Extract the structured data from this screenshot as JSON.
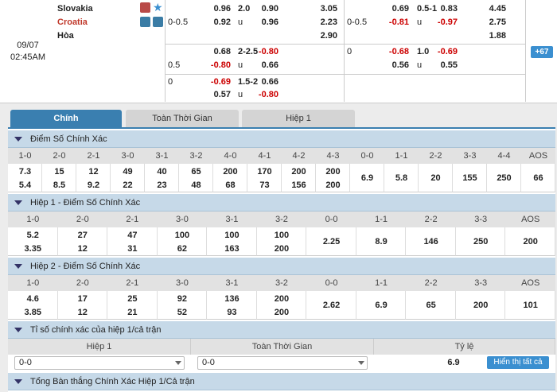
{
  "match": {
    "date": "09/07",
    "time": "02:45AM",
    "home": "Slovakia",
    "away": "Croatia",
    "draw": "Hòa",
    "more": "67",
    "lines": [
      {
        "ft_hdp": {
          "line": "0-0.5",
          "home": "0.96",
          "away": "0.92"
        },
        "ft_ou": {
          "line": "2.0",
          "over": "0.90",
          "under_label": "u",
          "under": "0.96"
        },
        "ft_1x2": {
          "home": "3.05",
          "away": "2.23",
          "draw": "2.90"
        },
        "h1_hdp": {
          "line": "0-0.5",
          "home": "0.69",
          "away": "-0.81"
        },
        "h1_ou": {
          "line": "0.5-1",
          "over": "0.83",
          "under_label": "u",
          "under": "-0.97"
        },
        "h1_1x2": {
          "home": "4.45",
          "away": "2.75",
          "draw": "1.88"
        }
      },
      {
        "ft_hdp": {
          "line": "0.5",
          "home": "0.68",
          "away": "-0.80"
        },
        "ft_ou": {
          "line": "2-2.5",
          "over": "-0.80",
          "under_label": "u",
          "under": "0.66"
        },
        "h1_hdp": {
          "line": "0",
          "home": "-0.68",
          "away": "0.56"
        },
        "h1_ou": {
          "line": "1.0",
          "over": "-0.69",
          "under_label": "u",
          "under": "0.55"
        }
      },
      {
        "ft_hdp": {
          "line": "0",
          "home": "-0.69",
          "away": "0.57"
        },
        "ft_ou": {
          "line": "1.5-2",
          "over": "0.66",
          "under_label": "u",
          "under": "-0.80"
        }
      }
    ]
  },
  "tabs": [
    "Chính",
    "Toàn Thời Gian",
    "Hiệp 1"
  ],
  "sections": [
    {
      "title": "Điểm Số Chính Xác",
      "headers": [
        "1-0",
        "2-0",
        "2-1",
        "3-0",
        "3-1",
        "3-2",
        "4-0",
        "4-1",
        "4-2",
        "4-3",
        "0-0",
        "1-1",
        "2-2",
        "3-3",
        "4-4",
        "AOS"
      ],
      "cells": [
        [
          "7.3",
          "5.4"
        ],
        [
          "15",
          "8.5"
        ],
        [
          "12",
          "9.2"
        ],
        [
          "49",
          "22"
        ],
        [
          "40",
          "23"
        ],
        [
          "65",
          "48"
        ],
        [
          "200",
          "68"
        ],
        [
          "170",
          "73"
        ],
        [
          "200",
          "156"
        ],
        [
          "200",
          "200"
        ],
        [
          "6.9"
        ],
        [
          "5.8"
        ],
        [
          "20"
        ],
        [
          "155"
        ],
        [
          "250"
        ],
        [
          "66"
        ]
      ]
    },
    {
      "title": "Hiệp 1 - Điểm Số Chính Xác",
      "headers": [
        "1-0",
        "2-0",
        "2-1",
        "3-0",
        "3-1",
        "3-2",
        "0-0",
        "1-1",
        "2-2",
        "3-3",
        "AOS"
      ],
      "cells": [
        [
          "5.2",
          "3.35"
        ],
        [
          "27",
          "12"
        ],
        [
          "47",
          "31"
        ],
        [
          "100",
          "62"
        ],
        [
          "100",
          "163"
        ],
        [
          "100",
          "200"
        ],
        [
          "2.25"
        ],
        [
          "8.9"
        ],
        [
          "146"
        ],
        [
          "250"
        ],
        [
          "200"
        ]
      ]
    },
    {
      "title": "Hiệp 2 - Điểm Số Chính Xác",
      "headers": [
        "1-0",
        "2-0",
        "2-1",
        "3-0",
        "3-1",
        "3-2",
        "0-0",
        "1-1",
        "2-2",
        "3-3",
        "AOS"
      ],
      "cells": [
        [
          "4.6",
          "3.85"
        ],
        [
          "17",
          "12"
        ],
        [
          "25",
          "21"
        ],
        [
          "92",
          "52"
        ],
        [
          "136",
          "93"
        ],
        [
          "200",
          "200"
        ],
        [
          "2.62"
        ],
        [
          "6.9"
        ],
        [
          "65"
        ],
        [
          "200"
        ],
        [
          "101"
        ]
      ]
    },
    {
      "title": "Tỉ số chính xác của hiệp 1/cả trận",
      "headers": [
        "Hiệp 1",
        "Toàn Thời Gian",
        "Tỷ lệ"
      ],
      "selects": [
        "0-0",
        "0-0"
      ],
      "value": "6.9",
      "button": "Hiển thị tất cả"
    },
    {
      "title": "Tổng Bàn thắng Chính Xác Hiệp 1/Cả trận"
    }
  ]
}
